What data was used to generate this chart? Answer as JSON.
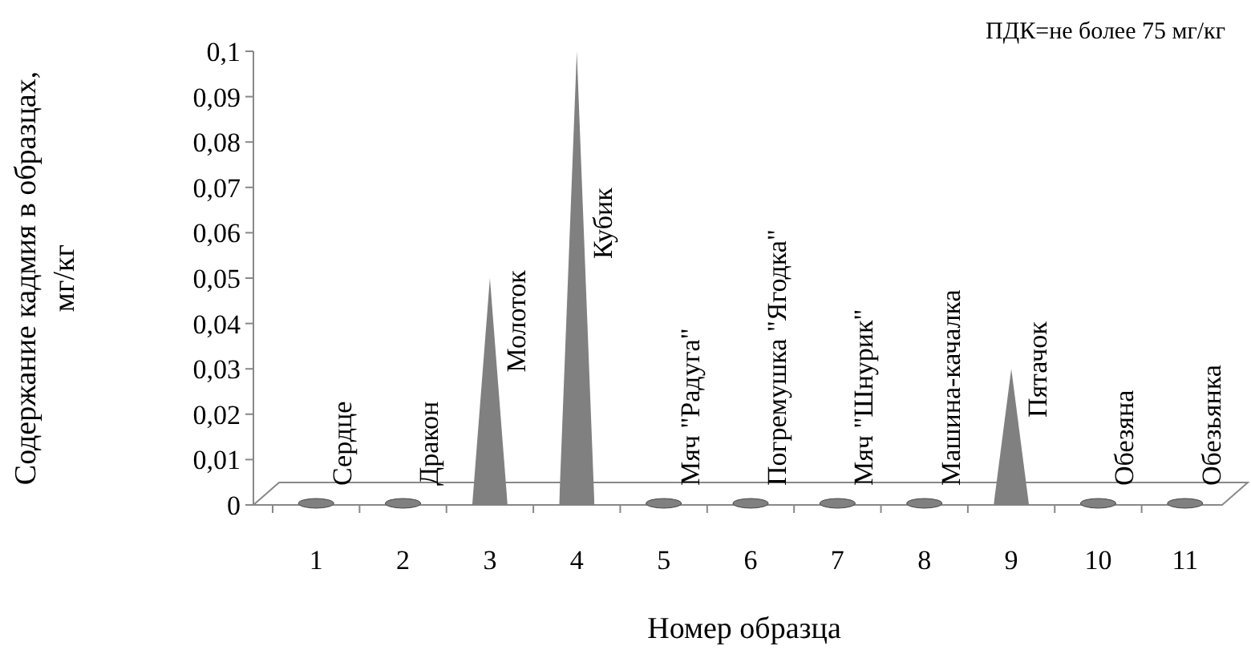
{
  "chart_data": {
    "type": "bar",
    "xlabel": "Номер образца",
    "ylabel": "Содержание кадмия в образцах, мг/кг",
    "categories": [
      "1",
      "2",
      "3",
      "4",
      "5",
      "6",
      "7",
      "8",
      "9",
      "10",
      "11"
    ],
    "values": [
      0,
      0,
      0.05,
      0.1,
      0,
      0,
      0,
      0,
      0.03,
      0,
      0
    ],
    "color": "#808080",
    "ylim": [
      0,
      0.1
    ],
    "yticks": [
      0,
      {
        "value": 0.01,
        "label": "0,01"
      },
      {
        "value": 0.02,
        "label": "0,02"
      },
      {
        "value": 0.03,
        "label": "0,03"
      },
      {
        "value": 0.04,
        "label": "0,04"
      },
      {
        "value": 0.05,
        "label": "0,05"
      },
      {
        "value": 0.06,
        "label": "0,06"
      },
      {
        "value": 0.07,
        "label": "0,07"
      },
      {
        "value": 0.08,
        "label": "0,08"
      },
      {
        "value": 0.09,
        "label": "0,09"
      },
      {
        "value": 0.1,
        "label": "0,1"
      }
    ],
    "value_labels": [
      "Сердце",
      "Дракон",
      "Молоток",
      "Кубик",
      "Мяч \"Радуга\"",
      "Погремушка \"Ягодка\"",
      "Мяч \"Шнурик\"",
      "Машина-качалка",
      "Пятачок",
      "Обезяна",
      "Обезьянка"
    ],
    "annotations": [
      "ПДК=не более 75 мг/кг"
    ]
  }
}
